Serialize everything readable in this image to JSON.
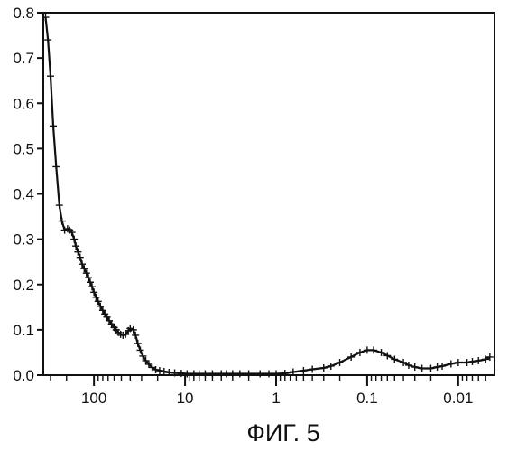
{
  "chart_data": {
    "type": "line",
    "title": "",
    "xlabel": "",
    "ylabel": "",
    "caption": "ФИГ. 5",
    "x_scale": "log",
    "x_reversed": true,
    "xlim": [
      360,
      0.004
    ],
    "ylim": [
      0,
      0.8
    ],
    "grid": false,
    "marker": "plus",
    "line_color": "#111111",
    "x_ticks": [
      {
        "value": 100,
        "label": "100"
      },
      {
        "value": 10,
        "label": "10"
      },
      {
        "value": 1,
        "label": "1"
      },
      {
        "value": 0.1,
        "label": "0.1"
      },
      {
        "value": 0.01,
        "label": "0.01"
      }
    ],
    "y_ticks": [
      {
        "value": 0,
        "label": "0.0"
      },
      {
        "value": 0.1,
        "label": "0.1"
      },
      {
        "value": 0.2,
        "label": "0.2"
      },
      {
        "value": 0.3,
        "label": "0.3"
      },
      {
        "value": 0.4,
        "label": "0.4"
      },
      {
        "value": 0.5,
        "label": "0.5"
      },
      {
        "value": 0.6,
        "label": "0.6"
      },
      {
        "value": 0.7,
        "label": "0.7"
      },
      {
        "value": 0.8,
        "label": "0.8"
      }
    ],
    "series": [
      {
        "x": [
          340,
          320,
          300,
          280,
          260,
          240,
          225,
          210,
          195,
          185,
          175,
          165,
          158,
          150,
          142,
          135,
          128,
          121,
          115,
          110,
          105,
          100,
          95,
          90,
          85,
          80,
          76,
          72,
          68,
          64,
          60,
          57,
          54,
          51,
          48,
          45,
          42,
          40,
          37,
          35,
          33,
          31,
          29,
          27,
          25,
          23,
          21,
          19,
          17,
          15,
          13,
          11,
          9.5,
          8,
          7,
          6,
          5,
          4,
          3.5,
          3,
          2.5,
          2,
          1.5,
          1.2,
          1,
          0.8,
          0.65,
          0.5,
          0.4,
          0.3,
          0.25,
          0.2,
          0.15,
          0.12,
          0.1,
          0.085,
          0.07,
          0.06,
          0.05,
          0.04,
          0.035,
          0.03,
          0.025,
          0.02,
          0.017,
          0.015,
          0.012,
          0.01,
          0.008,
          0.007,
          0.006,
          0.005,
          0.0045
        ],
        "y": [
          0.79,
          0.74,
          0.66,
          0.55,
          0.46,
          0.375,
          0.34,
          0.32,
          0.323,
          0.32,
          0.315,
          0.3,
          0.285,
          0.272,
          0.26,
          0.245,
          0.235,
          0.225,
          0.215,
          0.205,
          0.195,
          0.183,
          0.172,
          0.163,
          0.152,
          0.143,
          0.135,
          0.128,
          0.12,
          0.113,
          0.105,
          0.1,
          0.094,
          0.09,
          0.088,
          0.09,
          0.098,
          0.103,
          0.1,
          0.088,
          0.07,
          0.055,
          0.042,
          0.032,
          0.024,
          0.017,
          0.012,
          0.01,
          0.008,
          0.006,
          0.005,
          0.004,
          0.003,
          0.003,
          0.003,
          0.003,
          0.003,
          0.003,
          0.003,
          0.003,
          0.003,
          0.003,
          0.003,
          0.003,
          0.003,
          0.004,
          0.007,
          0.01,
          0.013,
          0.016,
          0.02,
          0.028,
          0.04,
          0.05,
          0.055,
          0.055,
          0.05,
          0.043,
          0.035,
          0.028,
          0.022,
          0.018,
          0.015,
          0.015,
          0.018,
          0.02,
          0.025,
          0.028,
          0.028,
          0.03,
          0.032,
          0.035,
          0.04
        ]
      }
    ]
  }
}
